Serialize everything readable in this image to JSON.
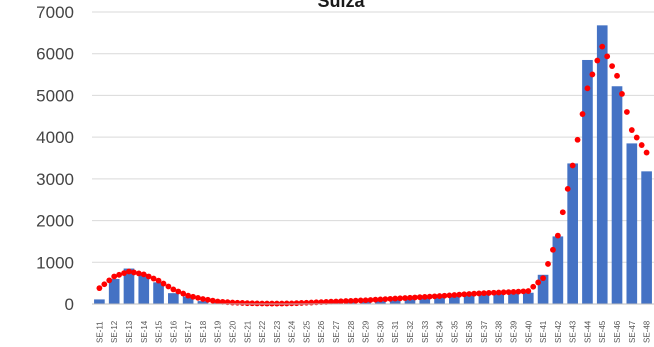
{
  "chart_data": {
    "type": "bar",
    "title": "Suiza",
    "xlabel": "",
    "ylabel": "",
    "ylim": [
      0,
      7000
    ],
    "yticks": [
      0,
      1000,
      2000,
      3000,
      4000,
      5000,
      6000,
      7000
    ],
    "ytick_labels": [
      "0",
      "1000",
      "2000",
      "3000",
      "4000",
      "5000",
      "6000",
      "7000"
    ],
    "categories": [
      "SE-11",
      "SE-12",
      "SE-13",
      "SE-14",
      "SE-15",
      "SE-16",
      "SE-17",
      "SE-18",
      "SE-19",
      "SE-20",
      "SE-21",
      "SE-22",
      "SE-23",
      "SE-24",
      "SE-25",
      "SE-26",
      "SE-27",
      "SE-28",
      "SE-29",
      "SE-30",
      "SE-31",
      "SE-32",
      "SE-33",
      "SE-34",
      "SE-35",
      "SE-36",
      "SE-37",
      "SE-38",
      "SE-39",
      "SE-40",
      "SE-41",
      "SE-42",
      "SE-43",
      "SE-44",
      "SE-45",
      "SE-46",
      "SE-47",
      "SE-48"
    ],
    "series": [
      {
        "type": "bar",
        "color": "#4472c4",
        "values": [
          110,
          600,
          850,
          720,
          520,
          260,
          180,
          70,
          30,
          15,
          10,
          8,
          8,
          15,
          25,
          40,
          55,
          70,
          90,
          110,
          130,
          140,
          160,
          175,
          210,
          230,
          240,
          250,
          260,
          270,
          700,
          1620,
          3370,
          5850,
          6680,
          5220,
          3850,
          3180
        ]
      },
      {
        "type": "line",
        "style": "dotted",
        "color": "#ff0000",
        "values": [
          380,
          660,
          780,
          710,
          560,
          350,
          200,
          120,
          60,
          35,
          20,
          12,
          10,
          15,
          30,
          45,
          60,
          75,
          90,
          110,
          130,
          150,
          170,
          190,
          215,
          240,
          260,
          275,
          290,
          310,
          620,
          1640,
          3320,
          5170,
          6170,
          5470,
          4170,
          3630
        ]
      }
    ],
    "legend": "none",
    "grid": true
  }
}
